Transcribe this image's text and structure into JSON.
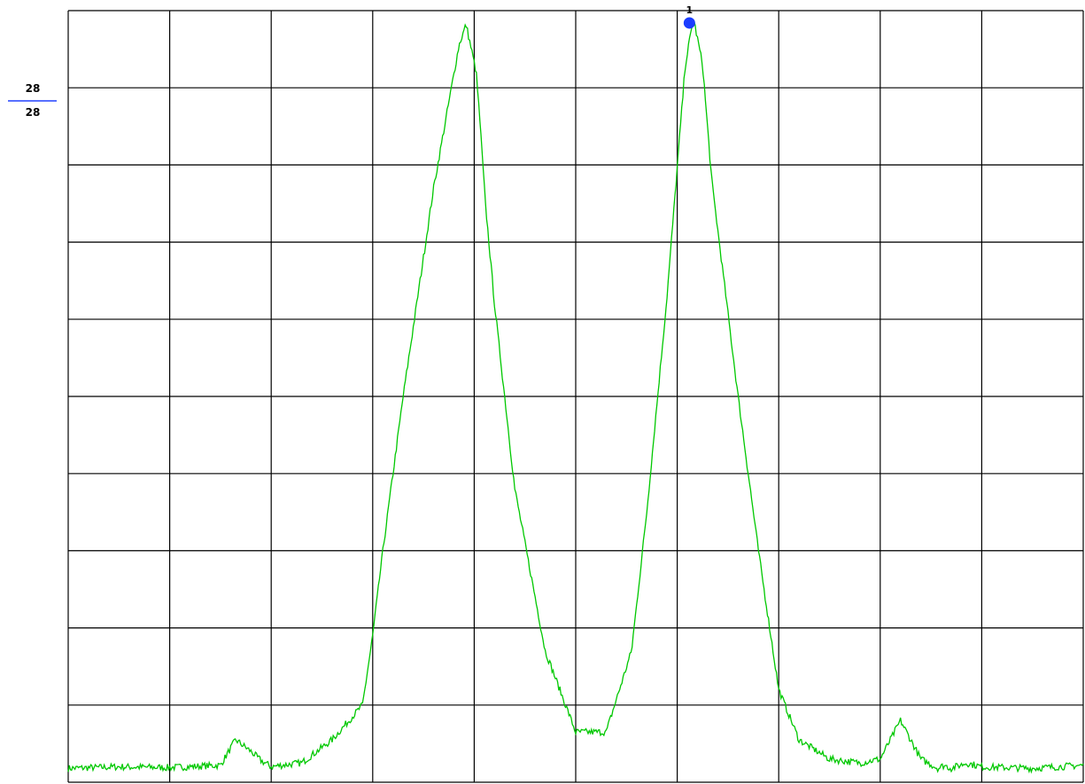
{
  "chart_data": {
    "type": "line",
    "title": "",
    "xlabel": "",
    "ylabel": "",
    "grid": true,
    "grid_divisions": {
      "x": 10,
      "y": 10
    },
    "xlim": [
      0,
      10
    ],
    "ylim": [
      0,
      10
    ],
    "reference_level": {
      "top": "28",
      "bottom": "28",
      "divider_color": "#2040ff"
    },
    "series": [
      {
        "color": "#00c800",
        "x": [
          0.0,
          0.5,
          1.0,
          1.5,
          1.65,
          1.8,
          1.9,
          2.0,
          2.1,
          2.3,
          2.6,
          2.9,
          3.0,
          3.1,
          3.3,
          3.6,
          3.85,
          3.92,
          4.02,
          4.06,
          4.11,
          4.2,
          4.4,
          4.7,
          5.0,
          5.3,
          5.55,
          5.7,
          5.9,
          6.08,
          6.16,
          6.25,
          6.34,
          6.6,
          6.8,
          7.0,
          7.2,
          7.5,
          7.8,
          8.0,
          8.2,
          8.4,
          8.57,
          8.63,
          8.7,
          8.85,
          9.0,
          9.5,
          10.0
        ],
        "y": [
          0.18,
          0.2,
          0.19,
          0.22,
          0.55,
          0.4,
          0.28,
          0.2,
          0.22,
          0.25,
          0.55,
          1.0,
          1.9,
          3.0,
          5.0,
          7.7,
          9.55,
          9.82,
          9.2,
          8.5,
          7.5,
          6.2,
          3.8,
          1.7,
          0.65,
          0.65,
          1.7,
          3.5,
          6.3,
          9.3,
          9.9,
          9.3,
          7.8,
          5.0,
          3.0,
          1.2,
          0.55,
          0.3,
          0.25,
          0.3,
          0.8,
          0.3,
          0.18,
          0.22,
          0.18,
          0.25,
          0.2,
          0.18,
          0.22
        ]
      }
    ],
    "markers": [
      {
        "label": "1",
        "x": 6.12,
        "y": 9.84,
        "color": "#1a3cff"
      }
    ]
  }
}
